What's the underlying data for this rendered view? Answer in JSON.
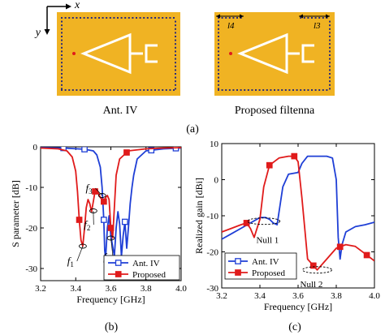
{
  "top_panel": {
    "axis_x": "x",
    "axis_y": "y",
    "left_label": "Ant. IV",
    "right_label": "Proposed filtenna",
    "dim_l4": "l4",
    "dim_l3": "l3",
    "caption": "(a)",
    "board_color": "#f0b323",
    "via_color": "#2b2b7a"
  },
  "chart_data": [
    {
      "type": "line",
      "caption": "(b)",
      "xlabel": "Frequency [GHz]",
      "ylabel": "S parameter [dB]",
      "xlim": [
        3.2,
        4.0
      ],
      "ylim": [
        -33,
        0
      ],
      "xticks": [
        "3.2",
        "3.4",
        "3.6",
        "3.8",
        "4.0"
      ],
      "xtick_values": [
        3.2,
        3.4,
        3.6,
        3.8,
        4.0
      ],
      "yticks": [
        "0",
        "-10",
        "-20",
        "-30"
      ],
      "ytick_values": [
        0,
        -10,
        -20,
        -30
      ],
      "legend_position": "bottom-right",
      "series": [
        {
          "name": "Ant. IV",
          "color": "#1f3fd6",
          "marker": "open-square",
          "x": [
            3.2,
            3.33,
            3.45,
            3.5,
            3.52,
            3.54,
            3.55,
            3.56,
            3.565,
            3.57,
            3.58,
            3.59,
            3.6,
            3.62,
            3.63,
            3.64,
            3.65,
            3.66,
            3.67,
            3.68,
            3.69,
            3.7,
            3.71,
            3.72,
            3.73,
            3.75,
            3.8,
            3.9,
            4.0
          ],
          "y": [
            -0.2,
            -0.3,
            -0.6,
            -1.0,
            -2.0,
            -5.0,
            -10.0,
            -18.0,
            -25.5,
            -27.5,
            -20.0,
            -17.0,
            -22.0,
            -27.0,
            -20.0,
            -16.0,
            -19.0,
            -27.0,
            -22.0,
            -18.5,
            -25.0,
            -20.0,
            -14.0,
            -10.0,
            -7.0,
            -3.0,
            -1.0,
            -0.5,
            -0.3
          ],
          "marker_x": [
            3.33,
            3.45,
            3.56,
            3.68,
            3.83,
            3.97
          ]
        },
        {
          "name": "Proposed",
          "color": "#e01b1b",
          "marker": "filled-square",
          "x": [
            3.2,
            3.3,
            3.35,
            3.38,
            3.4,
            3.41,
            3.42,
            3.43,
            3.44,
            3.45,
            3.46,
            3.47,
            3.48,
            3.49,
            3.5,
            3.51,
            3.52,
            3.53,
            3.54,
            3.55,
            3.56,
            3.57,
            3.58,
            3.59,
            3.6,
            3.61,
            3.62,
            3.63,
            3.65,
            3.7,
            3.8,
            3.9,
            4.0
          ],
          "y": [
            -0.3,
            -0.5,
            -1.0,
            -2.5,
            -6.0,
            -11.0,
            -18.0,
            -23.0,
            -24.5,
            -20.0,
            -15.0,
            -13.0,
            -14.0,
            -16.0,
            -13.5,
            -11.0,
            -10.5,
            -11.5,
            -12.5,
            -13.0,
            -13.5,
            -12.5,
            -12.0,
            -13.0,
            -20.0,
            -22.5,
            -15.0,
            -7.0,
            -3.0,
            -1.0,
            -0.5,
            -0.3,
            -0.2
          ],
          "marker_x": [
            3.42,
            3.51,
            3.56,
            3.6,
            3.69
          ]
        }
      ],
      "annotations": [
        {
          "label": "f1",
          "x": 3.44,
          "y": -24.5
        },
        {
          "label": "f2",
          "x": 3.5,
          "y": -15.8
        },
        {
          "label": "f3",
          "x": 3.55,
          "y": -12.0
        },
        {
          "label": "f4",
          "x": 3.6,
          "y": -22.5
        }
      ]
    },
    {
      "type": "line",
      "caption": "(c)",
      "xlabel": "Frequency [GHz]",
      "ylabel": "Realized gain [dBi]",
      "xlim": [
        3.2,
        4.0
      ],
      "ylim": [
        -30,
        10
      ],
      "xticks": [
        "3.2",
        "3.4",
        "3.6",
        "3.8",
        "4.0"
      ],
      "xtick_values": [
        3.2,
        3.4,
        3.6,
        3.8,
        4.0
      ],
      "yticks": [
        "10",
        "0",
        "-10",
        "-20",
        "-30"
      ],
      "ytick_values": [
        10,
        0,
        -10,
        -20,
        -30
      ],
      "legend_position": "bottom-left",
      "series": [
        {
          "name": "Ant. IV",
          "color": "#1f3fd6",
          "marker": "open-square",
          "x": [
            3.2,
            3.25,
            3.3,
            3.35,
            3.4,
            3.43,
            3.45,
            3.47,
            3.49,
            3.5,
            3.52,
            3.55,
            3.58,
            3.6,
            3.62,
            3.65,
            3.7,
            3.75,
            3.78,
            3.8,
            3.81,
            3.82,
            3.83,
            3.85,
            3.9,
            3.95,
            4.0
          ],
          "y": [
            -16.5,
            -15.0,
            -13.5,
            -12.0,
            -10.5,
            -10.5,
            -11.0,
            -12.0,
            -12.5,
            -9.0,
            -2.0,
            1.5,
            1.8,
            2.0,
            4.5,
            6.5,
            6.5,
            6.5,
            6.0,
            0.0,
            -16.0,
            -22.0,
            -18.0,
            -14.5,
            -13.0,
            -12.5,
            -11.8
          ]
        },
        {
          "name": "Proposed",
          "color": "#e01b1b",
          "marker": "filled-square",
          "x": [
            3.2,
            3.25,
            3.3,
            3.33,
            3.35,
            3.37,
            3.4,
            3.42,
            3.45,
            3.5,
            3.55,
            3.58,
            3.6,
            3.62,
            3.65,
            3.7,
            3.75,
            3.8,
            3.85,
            3.9,
            3.95,
            4.0
          ],
          "y": [
            -14.5,
            -13.5,
            -12.5,
            -12.0,
            -13.5,
            -16.0,
            -11.0,
            -2.0,
            4.0,
            6.0,
            6.5,
            6.5,
            5.0,
            -5.0,
            -22.0,
            -25.0,
            -22.0,
            -19.0,
            -18.0,
            -18.5,
            -20.5,
            -22.5
          ],
          "marker_x": [
            3.33,
            3.45,
            3.58,
            3.68,
            3.82,
            3.96
          ]
        }
      ],
      "annotations": [
        {
          "label": "Null 1",
          "x": 3.42,
          "y": -11.5
        },
        {
          "label": "Null 2",
          "x": 3.7,
          "y": -25.0
        }
      ]
    }
  ]
}
